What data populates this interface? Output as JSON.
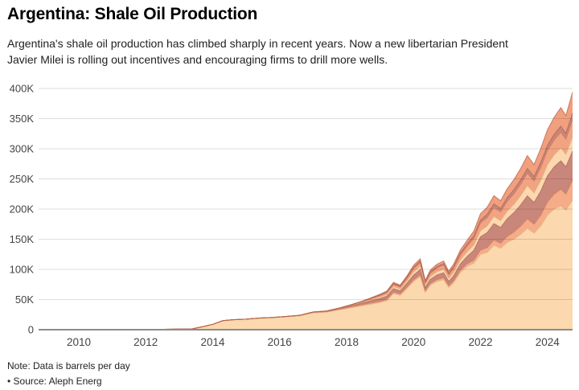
{
  "header": {
    "title": "Argentina: Shale Oil Production",
    "subtitle": "Argentina's shale oil production has climbed sharply in recent years. Now a new libertarian President Javier Milei is rolling out incentives and encouraging firms to drill more wells."
  },
  "footer": {
    "note": "Note: Data is barrels per day",
    "source": "• Source: Aleph Energ"
  },
  "chart_data": {
    "type": "area",
    "stacked": true,
    "title": "Argentina: Shale Oil Production",
    "xlabel": "",
    "ylabel": "",
    "unit": "thousand barrels per day",
    "xlim": [
      2008.8,
      2024.75
    ],
    "ylim": [
      0,
      400
    ],
    "grid": true,
    "legend": "none",
    "grid_color": "rgba(0,0,0,0.13)",
    "axis_color": "#8c8c8c",
    "label_color": "#444444",
    "x_ticks": [
      2010,
      2012,
      2014,
      2016,
      2018,
      2020,
      2022,
      2024
    ],
    "x_tick_labels": [
      "2010",
      "2012",
      "2014",
      "2016",
      "2018",
      "2020",
      "2022",
      "2024"
    ],
    "y_ticks": [
      0,
      50,
      100,
      150,
      200,
      250,
      300,
      350,
      400
    ],
    "y_tick_labels": [
      "0",
      "50K",
      "100K",
      "150K",
      "200K",
      "250K",
      "300K",
      "350K",
      "400K"
    ],
    "x": [
      2009,
      2010,
      2011,
      2012,
      2012.8,
      2013.4,
      2013.7,
      2014,
      2014.3,
      2014.6,
      2015,
      2015.4,
      2015.8,
      2016.2,
      2016.6,
      2017,
      2017.4,
      2017.8,
      2018.1,
      2018.4,
      2018.7,
      2019,
      2019.2,
      2019.4,
      2019.6,
      2019.8,
      2020,
      2020.2,
      2020.35,
      2020.5,
      2020.7,
      2020.9,
      2021.05,
      2021.2,
      2021.4,
      2021.6,
      2021.8,
      2022,
      2022.2,
      2022.4,
      2022.6,
      2022.8,
      2023,
      2023.2,
      2023.4,
      2023.6,
      2023.8,
      2024,
      2024.2,
      2024.4,
      2024.55,
      2024.75
    ],
    "series": [
      {
        "name": "layer-1",
        "fill": "#FBD8AE",
        "stroke": "#E5B183",
        "values": [
          0,
          0,
          0,
          0.3,
          0.8,
          1.5,
          5,
          9,
          15,
          16.5,
          17.5,
          19,
          20,
          21.5,
          23,
          28,
          29,
          33,
          36,
          39,
          42,
          45,
          48,
          60,
          57,
          68,
          80,
          88,
          62,
          74,
          80,
          83,
          70,
          78,
          95,
          105,
          110,
          125,
          128,
          140,
          135,
          145,
          150,
          158,
          168,
          160,
          172,
          190,
          200,
          205,
          198,
          215
        ]
      },
      {
        "name": "layer-2",
        "fill": "#F5AC88",
        "stroke": "#CE7A58",
        "values": [
          0,
          0,
          0,
          0,
          0,
          0,
          0,
          0,
          0,
          0,
          0,
          0.3,
          0.4,
          0.5,
          0.6,
          0.8,
          1,
          1.2,
          1.5,
          1.8,
          2,
          2.2,
          2.4,
          2.6,
          2.4,
          2.8,
          3,
          3.2,
          2.2,
          2.8,
          3.2,
          3.4,
          3,
          3.4,
          4,
          4.5,
          5.5,
          7,
          8,
          9,
          8.5,
          10,
          12,
          14,
          16,
          15,
          18,
          22,
          25,
          28,
          27,
          33
        ]
      },
      {
        "name": "layer-3",
        "fill": "#C9877B",
        "stroke": "#A86257",
        "values": [
          0,
          0,
          0,
          0,
          0,
          0,
          0,
          0,
          0,
          0,
          0,
          0,
          0,
          0,
          0.3,
          0.5,
          0.8,
          1.2,
          1.8,
          2.5,
          3.5,
          4.5,
          5,
          5.5,
          5,
          6,
          7.5,
          8.5,
          5.5,
          6.5,
          7.5,
          8,
          7,
          8,
          10,
          12,
          16,
          22,
          25,
          27,
          26,
          29,
          32,
          35,
          38,
          36,
          40,
          43,
          45,
          47,
          45,
          48
        ]
      },
      {
        "name": "layer-4",
        "fill": "#FBD8AE",
        "stroke": "#E0A87C",
        "values": [
          0,
          0,
          0,
          0,
          0,
          0,
          0,
          0,
          0,
          0,
          0,
          0,
          0,
          0,
          0,
          0,
          0.3,
          0.5,
          0.8,
          1.2,
          1.8,
          2.5,
          3,
          3.5,
          3.2,
          4,
          5.5,
          6,
          4,
          5,
          5.5,
          6,
          5.2,
          6,
          7,
          8,
          9,
          10,
          11,
          12,
          11.5,
          13,
          14,
          15.5,
          17,
          16,
          18,
          19,
          20,
          21.5,
          21,
          24
        ]
      },
      {
        "name": "layer-5",
        "fill": "#F2A482",
        "stroke": "#C97455",
        "values": [
          0,
          0,
          0,
          0,
          0,
          0,
          0,
          0,
          0,
          0,
          0,
          0,
          0,
          0,
          0,
          0,
          0,
          0.4,
          0.7,
          1.1,
          1.7,
          2.5,
          3,
          3.6,
          3.3,
          4.2,
          5.5,
          6,
          4.2,
          5.5,
          6.2,
          6.8,
          6,
          6.8,
          8,
          9.2,
          11,
          13,
          14,
          15,
          14.5,
          16,
          17.5,
          19,
          20.5,
          19.5,
          21.5,
          23,
          24.5,
          26,
          25,
          28
        ]
      },
      {
        "name": "layer-6",
        "fill": "#C9877B",
        "stroke": "#A35E52",
        "values": [
          0,
          0,
          0,
          0,
          0,
          0,
          0,
          0,
          0,
          0,
          0,
          0,
          0,
          0,
          0,
          0,
          0,
          0,
          0,
          0.4,
          0.7,
          1,
          1.2,
          1.4,
          1.3,
          1.6,
          2,
          2.2,
          1.5,
          2,
          2.3,
          2.5,
          2.2,
          2.5,
          3,
          3.4,
          4,
          4.8,
          5.2,
          5.6,
          5.4,
          6,
          6.5,
          7,
          7.6,
          7.2,
          8,
          8.6,
          9.2,
          9.8,
          9.4,
          11
        ]
      },
      {
        "name": "layer-7",
        "fill": "#F0A07E",
        "stroke": "#B95F44",
        "values": [
          0,
          0,
          0,
          0,
          0,
          0,
          0,
          0,
          0,
          0,
          0,
          0,
          0,
          0,
          0,
          0,
          0,
          0,
          0,
          0,
          0.5,
          1.2,
          1.6,
          2,
          1.8,
          2.4,
          3.2,
          3.6,
          2.4,
          3.2,
          3.8,
          4.2,
          3.6,
          4.2,
          5.2,
          6.2,
          8,
          10.5,
          12,
          13.5,
          12.8,
          15,
          17,
          19,
          21.5,
          20,
          23,
          26,
          28.5,
          31,
          29.5,
          35
        ]
      }
    ]
  }
}
